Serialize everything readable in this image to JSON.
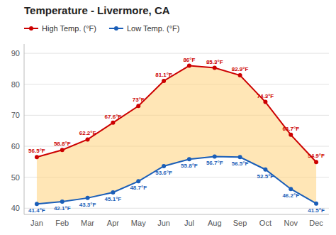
{
  "chart_data": {
    "type": "line",
    "title": "Temperature - Livermore, CA",
    "categories": [
      "Jan",
      "Feb",
      "Mar",
      "Apr",
      "May",
      "Jun",
      "Jul",
      "Aug",
      "Sep",
      "Oct",
      "Nov",
      "Dec"
    ],
    "series": [
      {
        "name": "High Temp. (°F)",
        "color": "#cc0000",
        "marker": "circle",
        "values": [
          56.5,
          58.8,
          62.2,
          67.6,
          73.0,
          81.1,
          86.0,
          85.3,
          82.9,
          74.3,
          63.7,
          54.9
        ],
        "value_labels": [
          "56.5°F",
          "58.8°F",
          "62.2°F",
          "67.6°F",
          "73°F",
          "81.1°F",
          "86°F",
          "85.3°F",
          "82.9°F",
          "74.3°F",
          "63.7°F",
          "54.9°F"
        ]
      },
      {
        "name": "Low Temp. (°F)",
        "color": "#1a5eb8",
        "marker": "circle",
        "values": [
          41.4,
          42.1,
          43.3,
          45.1,
          48.7,
          53.6,
          55.8,
          56.7,
          56.5,
          52.5,
          46.2,
          41.5
        ],
        "value_labels": [
          "41.4°F",
          "42.1°F",
          "43.3°F",
          "45.1°F",
          "48.7°F",
          "53.6°F",
          "55.8°F",
          "56.7°F",
          "56.5°F",
          "52.5°F",
          "46.2°F",
          "41.5°F"
        ]
      }
    ],
    "ylim": [
      38,
      93
    ],
    "yticks": [
      40,
      50,
      60,
      70,
      80,
      90
    ],
    "grid": true,
    "legend": "top-left",
    "data_labels": true
  }
}
